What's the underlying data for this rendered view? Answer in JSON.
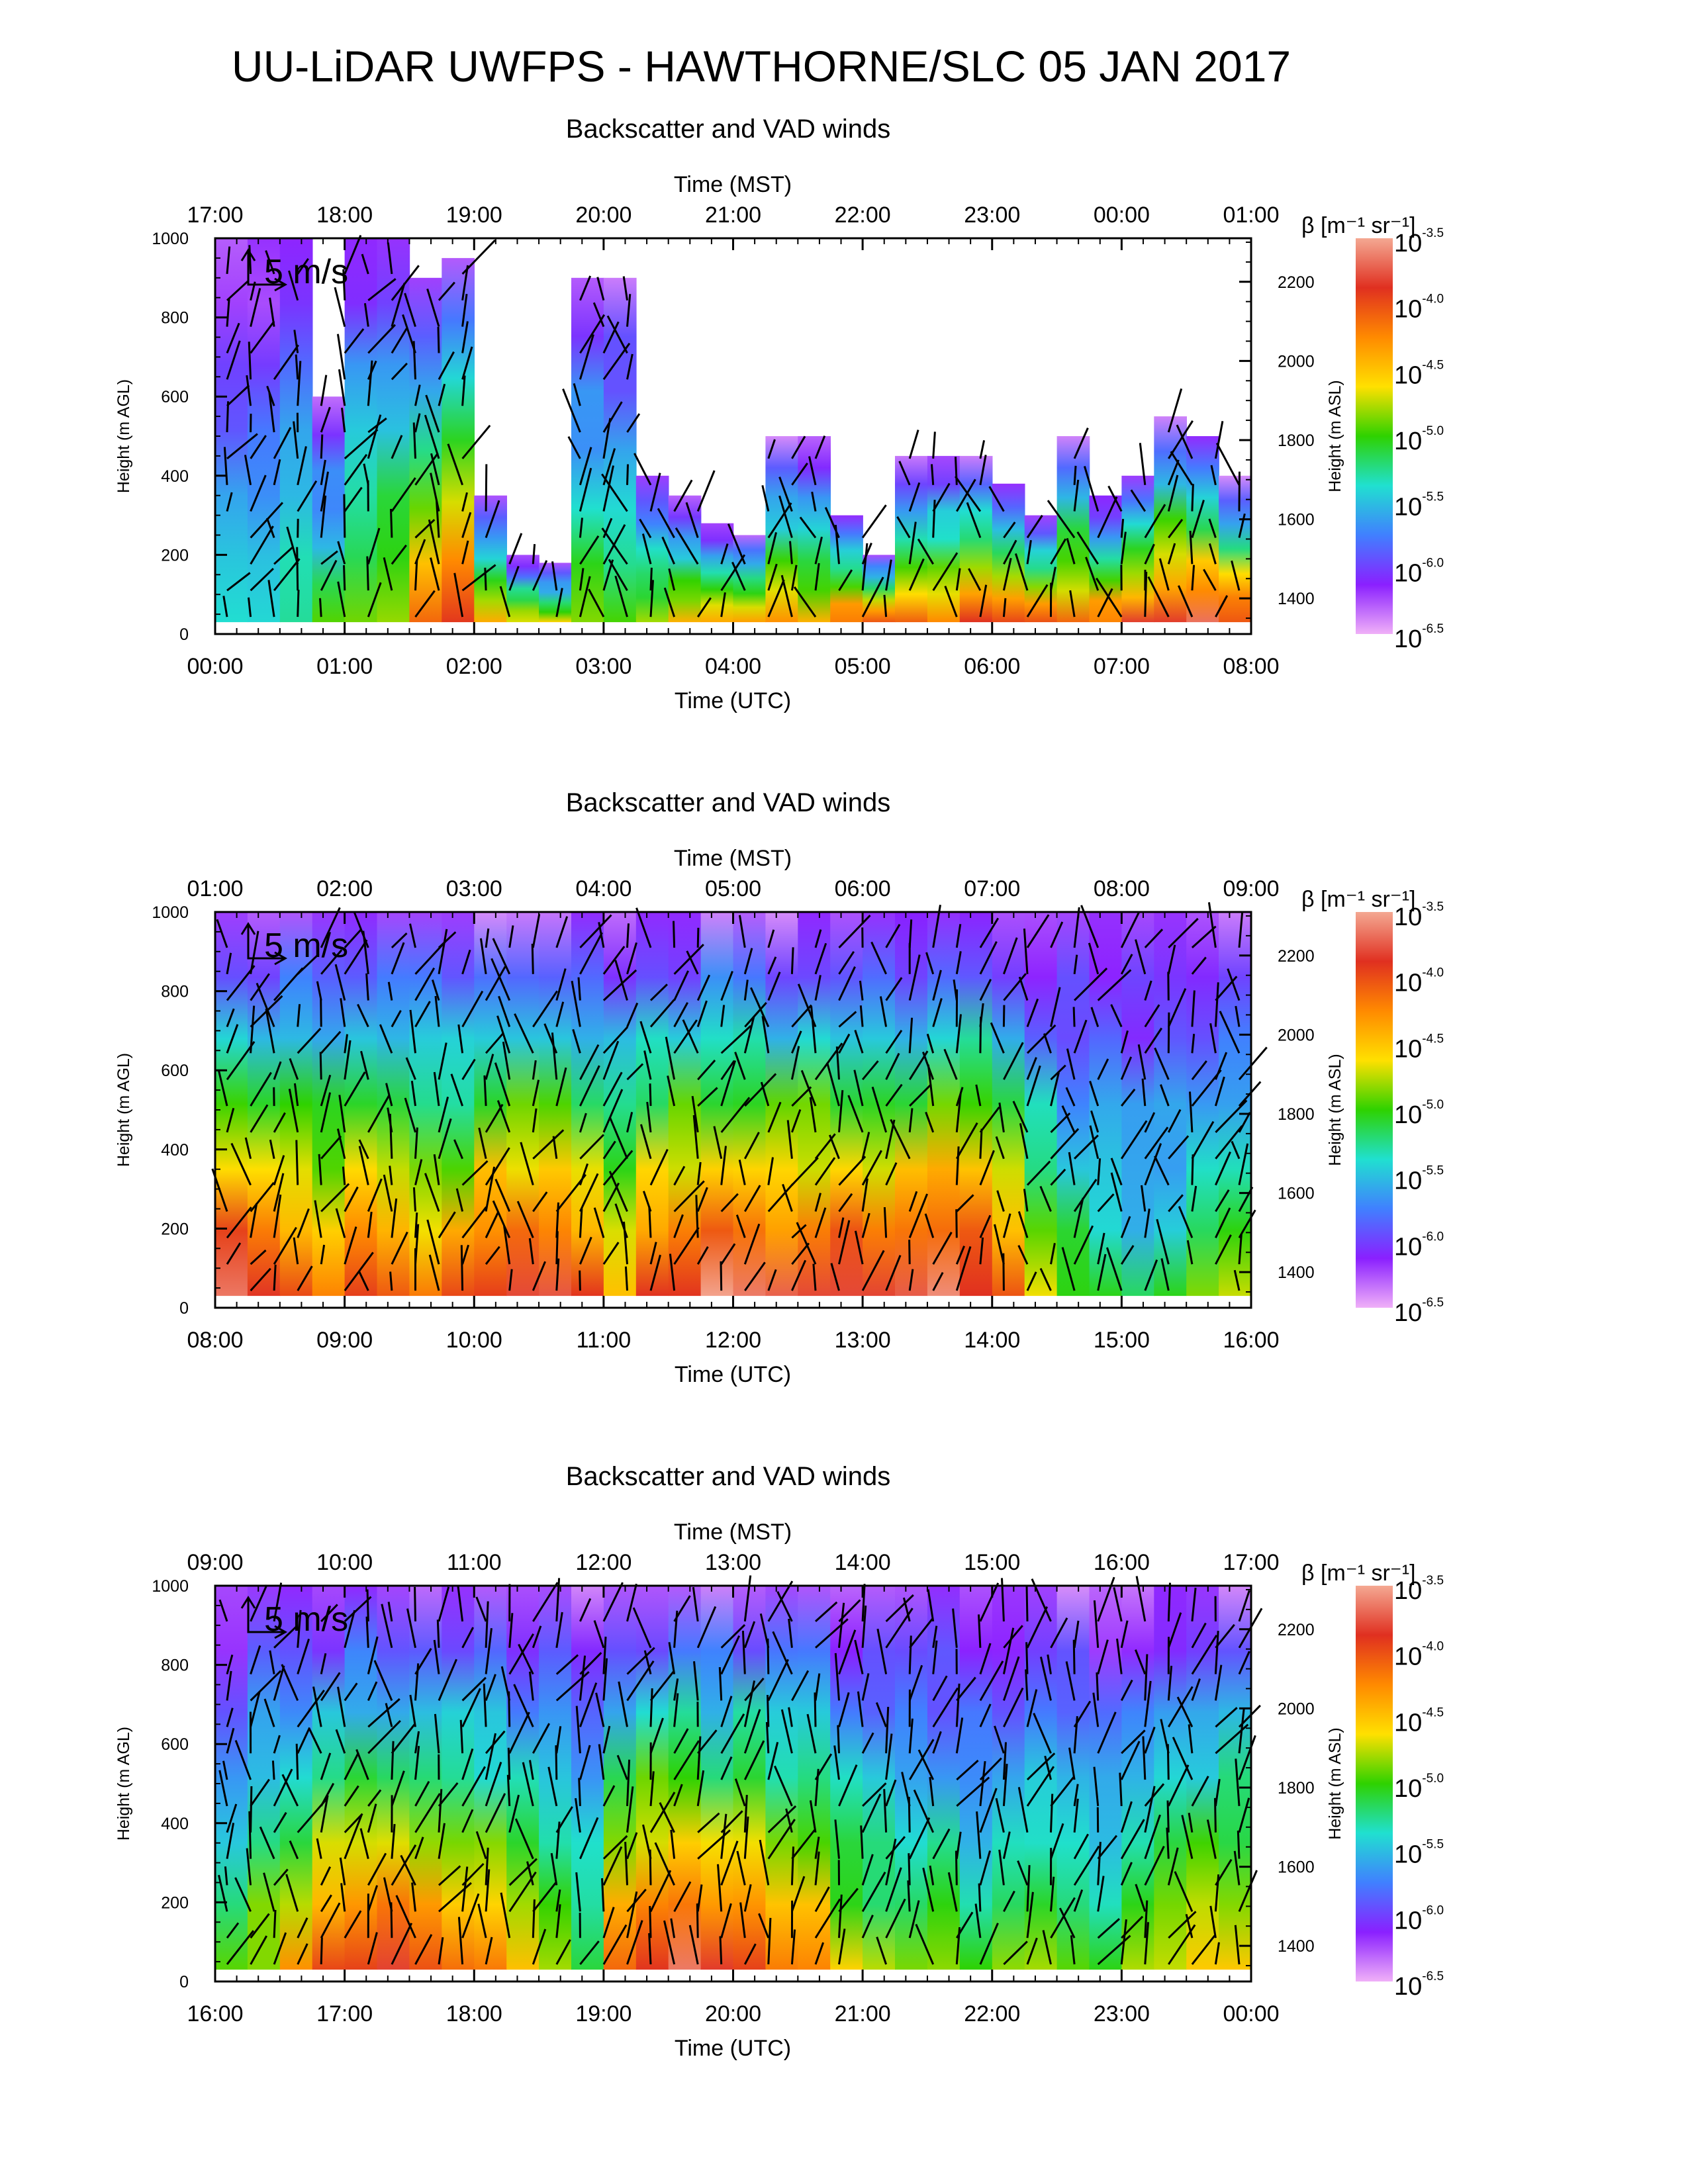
{
  "title": "UU-LiDAR UWFPS - HAWTHORNE/SLC 05 JAN 2017",
  "colorbar": {
    "label": "β [m⁻¹ sr⁻¹]",
    "ticks": [
      {
        "base": "10",
        "exp": "-3.5"
      },
      {
        "base": "10",
        "exp": "-4.0"
      },
      {
        "base": "10",
        "exp": "-4.5"
      },
      {
        "base": "10",
        "exp": "-5.0"
      },
      {
        "base": "10",
        "exp": "-5.5"
      },
      {
        "base": "10",
        "exp": "-6.0"
      },
      {
        "base": "10",
        "exp": "-6.5"
      }
    ],
    "colors": [
      "#f4a892",
      "#e03020",
      "#ff8a00",
      "#ffe000",
      "#2ed200",
      "#20e0d0",
      "#4080ff",
      "#8a20ff",
      "#f0b0f8"
    ]
  },
  "chart_data": [
    {
      "type": "heatmap",
      "title": "Backscatter and VAD winds",
      "xlabel_top": "Time (MST)",
      "xlabel_bottom": "Time (UTC)",
      "ylabel_left": "Height (m AGL)",
      "ylabel_right": "Height (m ASL)",
      "x_top_ticks": [
        "17:00",
        "18:00",
        "19:00",
        "20:00",
        "21:00",
        "22:00",
        "23:00",
        "00:00",
        "01:00"
      ],
      "x_bottom_ticks": [
        "00:00",
        "01:00",
        "02:00",
        "03:00",
        "04:00",
        "05:00",
        "06:00",
        "07:00",
        "08:00"
      ],
      "y_left_ticks": [
        "0",
        "200",
        "400",
        "600",
        "800",
        "1000"
      ],
      "y_right_ticks": [
        "1400",
        "1600",
        "1800",
        "2000",
        "2200"
      ],
      "ylim": [
        0,
        1000
      ],
      "reference_vector": "5 m/s",
      "aerosol_top_m": [
        1000,
        1000,
        1000,
        600,
        1000,
        1000,
        900,
        950,
        350,
        200,
        180,
        900,
        900,
        400,
        350,
        280,
        250,
        500,
        500,
        300,
        200,
        450,
        450,
        450,
        380,
        300,
        500,
        350,
        400,
        550,
        500,
        400
      ],
      "surface_intensity": [
        0.35,
        0.4,
        0.45,
        0.5,
        0.55,
        0.6,
        0.8,
        0.85,
        0.7,
        0.65,
        0.6,
        0.55,
        0.5,
        0.6,
        0.65,
        0.7,
        0.75,
        0.7,
        0.65,
        0.8,
        0.85,
        0.8,
        0.75,
        0.85,
        0.85,
        0.8,
        0.75,
        0.8,
        0.85,
        0.85,
        0.9,
        0.85
      ]
    },
    {
      "type": "heatmap",
      "title": "Backscatter and VAD winds",
      "xlabel_top": "Time (MST)",
      "xlabel_bottom": "Time (UTC)",
      "ylabel_left": "Height (m AGL)",
      "ylabel_right": "Height (m ASL)",
      "x_top_ticks": [
        "01:00",
        "02:00",
        "03:00",
        "04:00",
        "05:00",
        "06:00",
        "07:00",
        "08:00",
        "09:00"
      ],
      "x_bottom_ticks": [
        "08:00",
        "09:00",
        "10:00",
        "11:00",
        "12:00",
        "13:00",
        "14:00",
        "15:00",
        "16:00"
      ],
      "y_left_ticks": [
        "0",
        "200",
        "400",
        "600",
        "800",
        "1000"
      ],
      "y_right_ticks": [
        "1400",
        "1600",
        "1800",
        "2000",
        "2200"
      ],
      "ylim": [
        0,
        1000
      ],
      "reference_vector": "5 m/s",
      "aerosol_top_m": [
        1000,
        1000,
        1000,
        1000,
        1000,
        1000,
        1000,
        1000,
        1000,
        1000,
        1000,
        1000,
        1000,
        1000,
        1000,
        1000,
        1000,
        1000,
        1000,
        1000,
        1000,
        1000,
        1000,
        1000,
        1000,
        1000,
        1000,
        1000,
        1000,
        1000,
        1000,
        1000
      ],
      "surface_intensity": [
        0.95,
        0.9,
        0.85,
        0.8,
        0.85,
        0.8,
        0.75,
        0.8,
        0.9,
        0.92,
        0.9,
        0.85,
        0.7,
        0.85,
        0.9,
        0.95,
        0.92,
        0.9,
        0.92,
        0.95,
        0.92,
        0.9,
        0.95,
        0.92,
        0.85,
        0.6,
        0.5,
        0.45,
        0.4,
        0.45,
        0.5,
        0.55
      ]
    },
    {
      "type": "heatmap",
      "title": "Backscatter and VAD winds",
      "xlabel_top": "Time (MST)",
      "xlabel_bottom": "Time (UTC)",
      "ylabel_left": "Height (m AGL)",
      "ylabel_right": "Height (m ASL)",
      "x_top_ticks": [
        "09:00",
        "10:00",
        "11:00",
        "12:00",
        "13:00",
        "14:00",
        "15:00",
        "16:00",
        "17:00"
      ],
      "x_bottom_ticks": [
        "16:00",
        "17:00",
        "18:00",
        "19:00",
        "20:00",
        "21:00",
        "22:00",
        "23:00",
        "00:00"
      ],
      "y_left_ticks": [
        "0",
        "200",
        "400",
        "600",
        "800",
        "1000"
      ],
      "y_right_ticks": [
        "1400",
        "1600",
        "1800",
        "2000",
        "2200"
      ],
      "ylim": [
        0,
        1000
      ],
      "reference_vector": "5 m/s",
      "aerosol_top_m": [
        1000,
        1000,
        1000,
        1000,
        1000,
        1000,
        1000,
        1000,
        1000,
        1000,
        1000,
        1000,
        1000,
        1000,
        1000,
        1000,
        1000,
        1000,
        1000,
        1000,
        1000,
        1000,
        1000,
        1000,
        1000,
        1000,
        1000,
        1000,
        1000,
        1000,
        1000,
        1000
      ],
      "surface_intensity": [
        0.55,
        0.6,
        0.7,
        0.8,
        0.85,
        0.9,
        0.85,
        0.8,
        0.75,
        0.7,
        0.6,
        0.5,
        0.8,
        0.9,
        0.92,
        0.85,
        0.9,
        0.8,
        0.75,
        0.6,
        0.55,
        0.5,
        0.55,
        0.5,
        0.55,
        0.6,
        0.55,
        0.5,
        0.55,
        0.6,
        0.65,
        0.7
      ]
    }
  ]
}
